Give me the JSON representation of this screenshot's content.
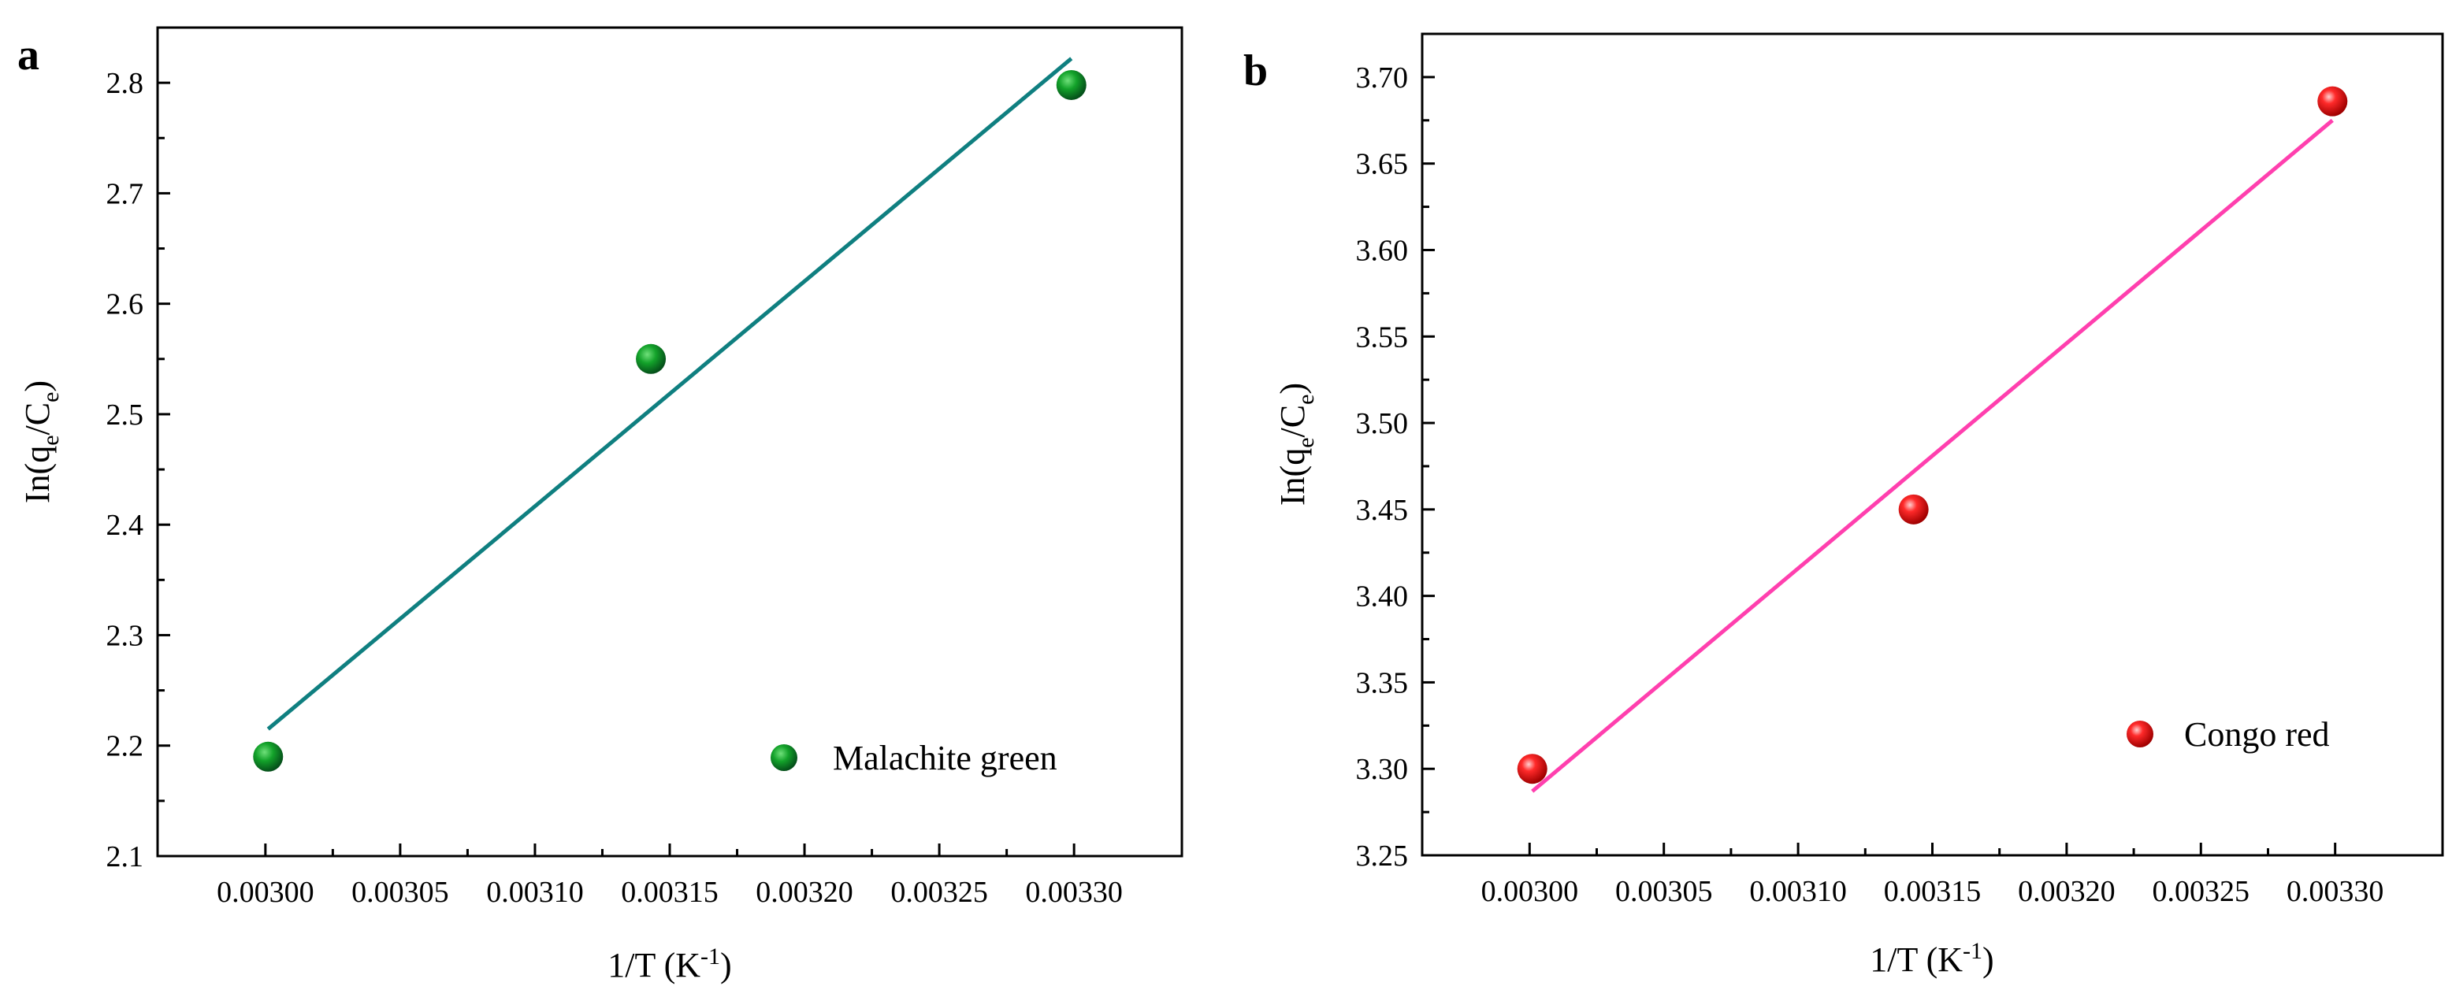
{
  "chart_data": [
    {
      "panel": "a",
      "type": "scatter",
      "xlabel": {
        "main": "1/T (K",
        "sup": "-1",
        "close": ")"
      },
      "ylabel": {
        "pre": "In(q",
        "sub1": "e",
        "mid": "/C",
        "sub2": "e",
        "post": ")"
      },
      "xlim": [
        0.00296,
        0.00334
      ],
      "ylim": [
        2.1,
        2.85
      ],
      "xticks": [
        0.003,
        0.00305,
        0.0031,
        0.00315,
        0.0032,
        0.00325,
        0.0033
      ],
      "xtick_labels": [
        "0.00300",
        "0.00305",
        "0.00310",
        "0.00315",
        "0.00320",
        "0.00325",
        "0.00330"
      ],
      "yticks": [
        2.1,
        2.2,
        2.3,
        2.4,
        2.5,
        2.6,
        2.7,
        2.8
      ],
      "ytick_labels": [
        "2.1",
        "2.2",
        "2.3",
        "2.4",
        "2.5",
        "2.6",
        "2.7",
        "2.8"
      ],
      "series": [
        {
          "name": "Malachite green",
          "x": [
            0.003001,
            0.003143,
            0.003299
          ],
          "y": [
            2.19,
            2.55,
            2.798
          ],
          "color": "#0f8a1f",
          "fit": {
            "x": [
              0.003001,
              0.003299
            ],
            "y": [
              2.215,
              2.822
            ],
            "color": "#0f7f80"
          }
        }
      ],
      "legend_position": "bottom-right"
    },
    {
      "panel": "b",
      "type": "scatter",
      "xlabel": {
        "main": "1/T (K",
        "sup": "-1",
        "close": ")"
      },
      "ylabel": {
        "pre": "In(q",
        "sub1": "e",
        "mid": "/C",
        "sub2": "e",
        "post": ")"
      },
      "xlim": [
        0.00296,
        0.00334
      ],
      "ylim": [
        3.25,
        3.725
      ],
      "xticks": [
        0.003,
        0.00305,
        0.0031,
        0.00315,
        0.0032,
        0.00325,
        0.0033
      ],
      "xtick_labels": [
        "0.00300",
        "0.00305",
        "0.00310",
        "0.00315",
        "0.00320",
        "0.00325",
        "0.00330"
      ],
      "yticks": [
        3.25,
        3.3,
        3.35,
        3.4,
        3.45,
        3.5,
        3.55,
        3.6,
        3.65,
        3.7
      ],
      "ytick_labels": [
        "3.25",
        "3.30",
        "3.35",
        "3.40",
        "3.45",
        "3.50",
        "3.55",
        "3.60",
        "3.65",
        "3.70"
      ],
      "series": [
        {
          "name": "Congo red",
          "x": [
            0.003001,
            0.003143,
            0.003299
          ],
          "y": [
            3.3,
            3.45,
            3.686
          ],
          "color": "#ee1111",
          "fit": {
            "x": [
              0.003001,
              0.003299
            ],
            "y": [
              3.287,
              3.675
            ],
            "color": "#ff3fae"
          }
        }
      ],
      "legend_position": "bottom-right"
    }
  ]
}
